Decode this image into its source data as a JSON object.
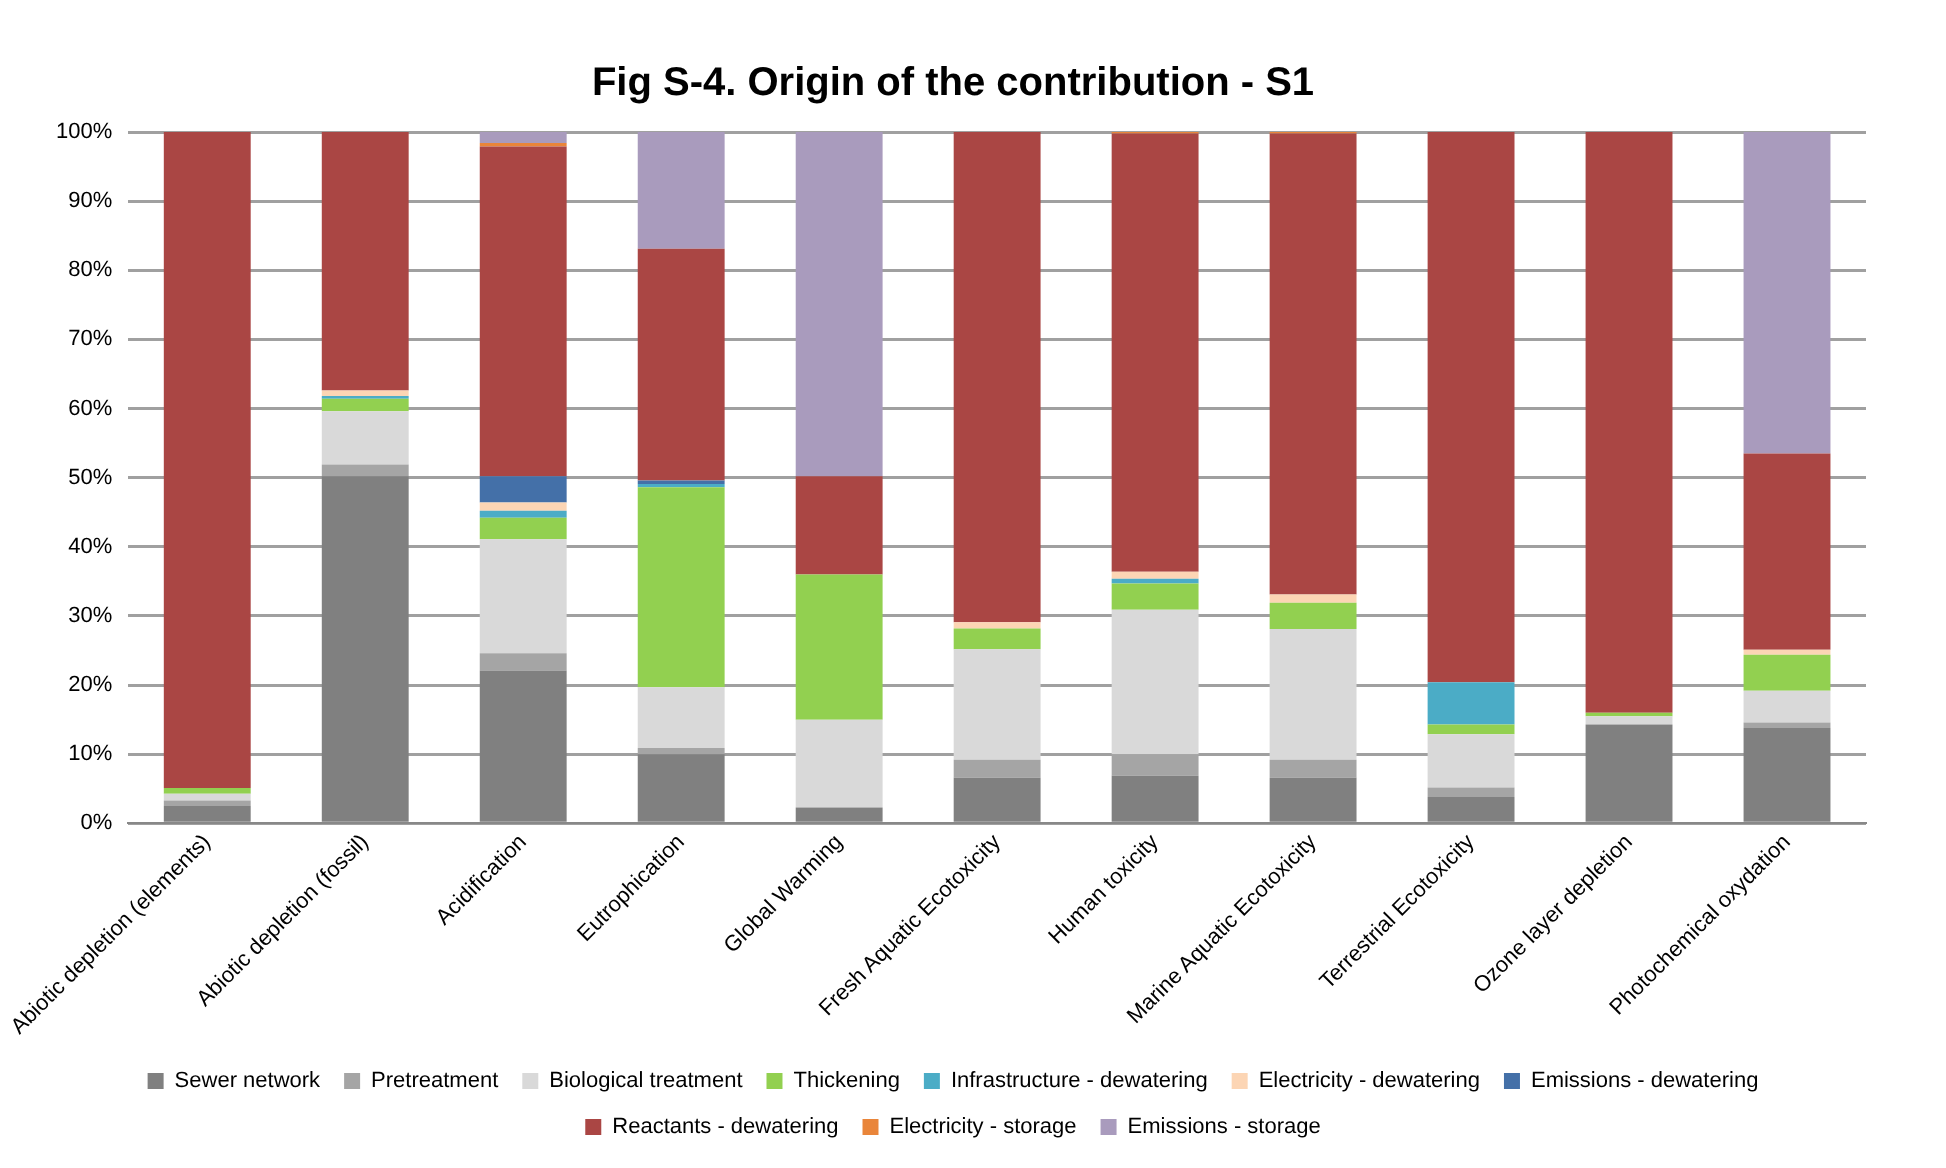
{
  "chart_data": {
    "type": "bar",
    "title": "Fig S-4. Origin of the contribution - S1",
    "stacked": true,
    "grid": "y",
    "legend": "bottom",
    "categories": [
      "Abiotic depletion (elements)",
      "Abiotic depletion (fossil)",
      "Acidification",
      "Eutrophication",
      "Global Warming",
      "Fresh Aquatic Ecotoxicity",
      "Human toxicity",
      "Marine Aquatic Ecotoxicity",
      "Terrestrial Ecotoxicity",
      "Ozone layer depletion",
      "Photochemical oxydation"
    ],
    "ylim": [
      0,
      100
    ],
    "yticks": [
      {
        "value": 0,
        "label": "0%"
      },
      {
        "value": 10,
        "label": "10%"
      },
      {
        "value": 20,
        "label": "20%"
      },
      {
        "value": 30,
        "label": "30%"
      },
      {
        "value": 40,
        "label": "40%"
      },
      {
        "value": 50,
        "label": "50%"
      },
      {
        "value": 60,
        "label": "60%"
      },
      {
        "value": 70,
        "label": "70%"
      },
      {
        "value": 80,
        "label": "80%"
      },
      {
        "value": 90,
        "label": "90%"
      },
      {
        "value": 100,
        "label": "100%"
      }
    ],
    "series": [
      {
        "name": "Sewer network",
        "color": "#808080",
        "values": [
          2.5,
          50.2,
          22.1,
          10.0,
          2.3,
          6.6,
          6.9,
          6.6,
          3.8,
          14.3,
          13.8
        ]
      },
      {
        "name": "Pretreatment",
        "color": "#a5a5a5",
        "values": [
          0.8,
          1.7,
          2.5,
          0.9,
          0,
          2.6,
          3.1,
          2.6,
          1.4,
          0,
          0.8
        ]
      },
      {
        "name": "Biological treatment",
        "color": "#d9d9d9",
        "values": [
          1.0,
          7.7,
          16.5,
          8.8,
          12.7,
          16.0,
          20.9,
          18.9,
          7.7,
          1.2,
          4.6
        ]
      },
      {
        "name": "Thickening",
        "color": "#92d050",
        "values": [
          0.8,
          1.8,
          3.1,
          28.9,
          21.0,
          3.0,
          3.8,
          3.8,
          1.4,
          0.5,
          5.2
        ]
      },
      {
        "name": "Infrastructure - dewatering",
        "color": "#4bacc6",
        "values": [
          0,
          0.4,
          1.0,
          0.5,
          0,
          0,
          0.7,
          0,
          6.1,
          0,
          0
        ]
      },
      {
        "name": "Electricity - dewatering",
        "color": "#fcd5b4",
        "values": [
          null,
          0.8,
          1.2,
          null,
          null,
          0.9,
          1.0,
          1.2,
          null,
          0,
          0.7
        ]
      },
      {
        "name": "Emissions - dewatering",
        "color": "#4470a8",
        "values": [
          0,
          0,
          3.8,
          0.5,
          0,
          0,
          0,
          0,
          0,
          0,
          0
        ]
      },
      {
        "name": "Reactants - dewatering",
        "color": "#aa4644",
        "values": [
          94.9,
          37.4,
          47.7,
          33.5,
          14.2,
          70.9,
          63.4,
          66.7,
          79.6,
          84.0,
          28.4
        ]
      },
      {
        "name": "Electricity - storage",
        "color": "#e9853a",
        "values": [
          0,
          0,
          0.5,
          0,
          0,
          0,
          0.2,
          0.2,
          0,
          0,
          0
        ]
      },
      {
        "name": "Emissions - storage",
        "color": "#a99bbd",
        "values": [
          0,
          0,
          1.6,
          16.9,
          49.8,
          0,
          0,
          0,
          0,
          0,
          46.5
        ]
      }
    ]
  }
}
